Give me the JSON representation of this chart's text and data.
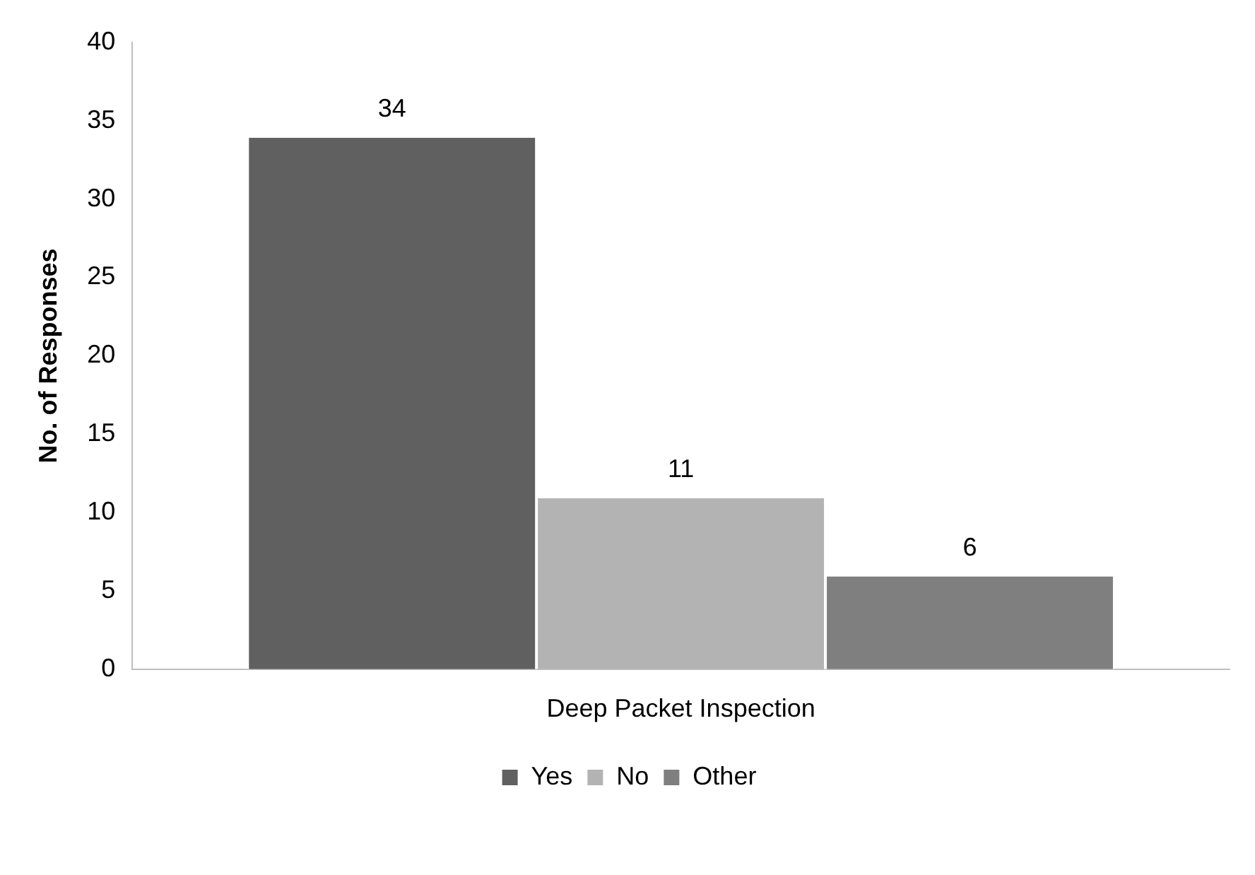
{
  "chart_data": {
    "type": "bar",
    "ylabel": "No. of Responses",
    "categories": [
      "Deep Packet Inspection"
    ],
    "series": [
      {
        "name": "Yes",
        "color": "#606060",
        "values": [
          34
        ]
      },
      {
        "name": "No",
        "color": "#b3b3b3",
        "values": [
          11
        ]
      },
      {
        "name": "Other",
        "color": "#7f7f7f",
        "values": [
          6
        ]
      }
    ],
    "ylim": [
      0,
      40
    ],
    "yticks": [
      0,
      5,
      10,
      15,
      20,
      25,
      30,
      35,
      40
    ],
    "grid": false,
    "legend": "bottom",
    "data_labels": true
  }
}
